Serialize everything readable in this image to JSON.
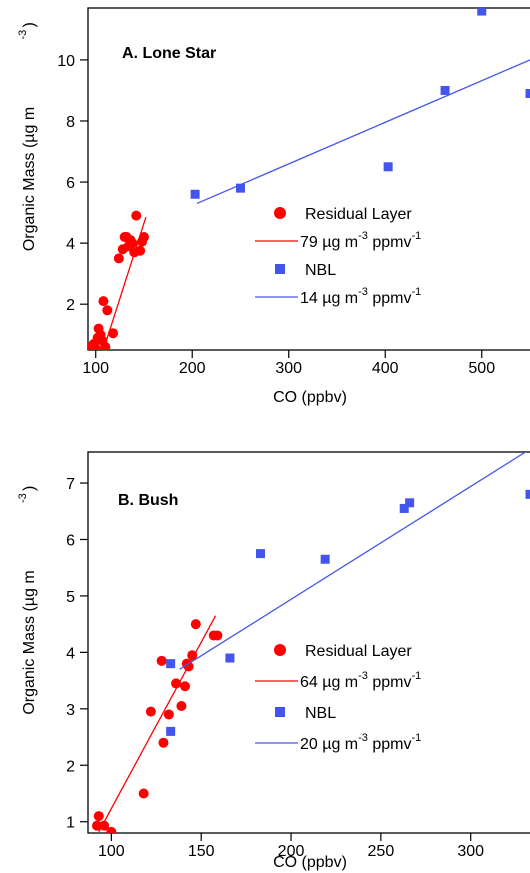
{
  "chart_data": [
    {
      "type": "scatter",
      "title": "A. Lone Star",
      "x_label": "CO (ppbv)",
      "y_label": [
        "Organic Mass (µg m",
        "-3",
        ")"
      ],
      "xlim": [
        92,
        550
      ],
      "ylim": [
        0.5,
        11.7
      ],
      "xticks": [
        100,
        200,
        300,
        400,
        500
      ],
      "yticks": [
        2,
        4,
        6,
        8,
        10
      ],
      "series": [
        {
          "name": "Residual Layer",
          "color": "#ff0000",
          "marker": "circle",
          "x": [
            92,
            95,
            97,
            98,
            100,
            102,
            103,
            105,
            107,
            108,
            110,
            112,
            118,
            124,
            128,
            130,
            132,
            134,
            136,
            138,
            140,
            142,
            146,
            148,
            150
          ],
          "values": [
            0.55,
            0.6,
            0.55,
            0.7,
            0.55,
            0.9,
            1.2,
            1.0,
            0.8,
            2.1,
            0.6,
            1.8,
            1.05,
            3.5,
            3.8,
            4.2,
            4.2,
            3.9,
            4.1,
            4.0,
            3.7,
            4.9,
            3.75,
            4.05,
            4.2
          ]
        },
        {
          "name": [
            "79 µg m",
            "-3",
            " ppmv",
            "-1"
          ],
          "color": "#ff0000",
          "marker": "line",
          "x": [
            109,
            152
          ],
          "values": [
            0.6,
            4.85
          ]
        },
        {
          "name": "NBL",
          "color": "#4455ee",
          "marker": "square",
          "x": [
            203,
            250,
            403,
            462,
            500,
            550
          ],
          "values": [
            5.6,
            5.8,
            6.5,
            9.0,
            11.6,
            8.9
          ]
        },
        {
          "name": [
            "14 µg m",
            "-3",
            " ppmv",
            "-1"
          ],
          "color": "#4455ee",
          "marker": "line",
          "x": [
            205,
            550
          ],
          "values": [
            5.3,
            10.0
          ]
        }
      ]
    },
    {
      "type": "scatter",
      "title": "B. Bush",
      "x_label": "CO (ppbv)",
      "y_label": [
        "Organic Mass (µg m",
        "-3",
        ")"
      ],
      "xlim": [
        87,
        333
      ],
      "ylim": [
        0.8,
        7.55
      ],
      "xticks": [
        100,
        150,
        200,
        250,
        300
      ],
      "yticks": [
        1,
        2,
        3,
        4,
        5,
        6,
        7
      ],
      "series": [
        {
          "name": "Residual Layer",
          "color": "#ff0000",
          "marker": "circle",
          "x": [
            93,
            92,
            96,
            100,
            118,
            122,
            128,
            129,
            132,
            136,
            139,
            141,
            142,
            143,
            145,
            147,
            157,
            159
          ],
          "values": [
            1.1,
            0.93,
            0.93,
            0.82,
            1.5,
            2.95,
            3.85,
            2.4,
            2.9,
            3.45,
            3.05,
            3.4,
            3.8,
            3.75,
            3.95,
            4.5,
            4.3,
            4.3
          ]
        },
        {
          "name": [
            "64 µg m",
            "-3",
            " ppmv",
            "-1"
          ],
          "color": "#ff0000",
          "marker": "line",
          "x": [
            93,
            158
          ],
          "values": [
            0.82,
            4.65
          ]
        },
        {
          "name": "NBL",
          "color": "#4455ee",
          "marker": "square",
          "x": [
            133,
            133,
            166,
            183,
            219,
            263,
            266,
            333
          ],
          "values": [
            3.8,
            2.6,
            3.9,
            5.75,
            5.65,
            6.55,
            6.65,
            6.8
          ]
        },
        {
          "name": [
            "20 µg m",
            "-3",
            " ppmv",
            "-1"
          ],
          "color": "#4455ee",
          "marker": "line",
          "x": [
            138,
            333
          ],
          "values": [
            3.7,
            7.6
          ]
        }
      ]
    }
  ]
}
